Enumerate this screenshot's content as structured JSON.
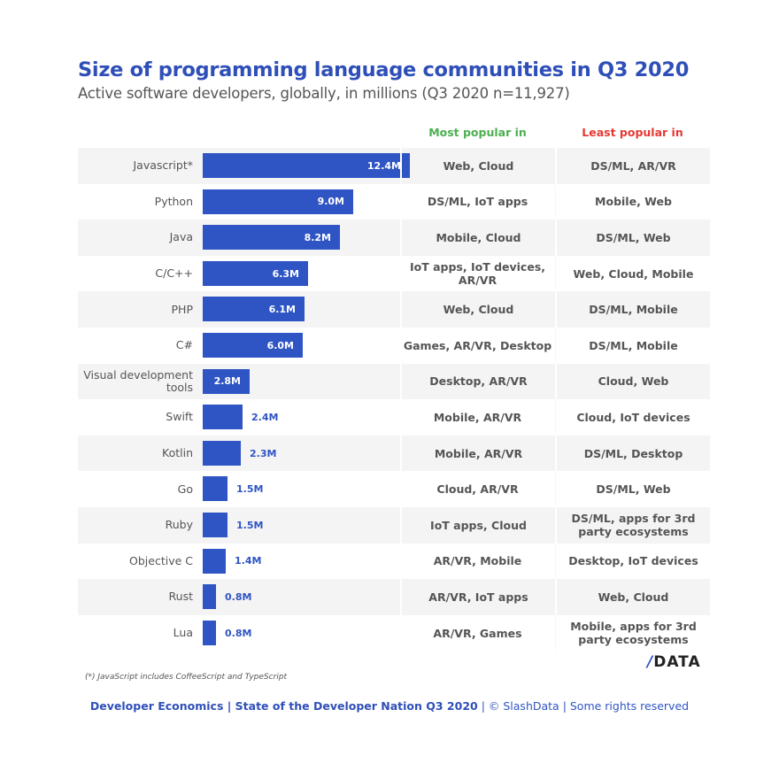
{
  "header": {
    "title": "Size of programming language communities in Q3 2020",
    "subtitle": "Active software developers, globally, in millions (Q3 2020 n=11,927)"
  },
  "columns": {
    "most_popular": "Most popular in",
    "least_popular": "Least popular in"
  },
  "colors": {
    "bar": "#2f55c4",
    "title": "#2f4fb8",
    "most_popular": "#4caf50",
    "least_popular": "#e53935"
  },
  "chart_data": {
    "type": "bar",
    "orientation": "horizontal",
    "title": "Size of programming language communities in Q3 2020",
    "subtitle": "Active software developers, globally, in millions (Q3 2020 n=11,927)",
    "xlabel": "",
    "ylabel": "",
    "unit": "M",
    "xlim": [
      0,
      12.4
    ],
    "grid": false,
    "legend": "none",
    "categories": [
      "Javascript*",
      "Python",
      "Java",
      "C/C++",
      "PHP",
      "C#",
      "Visual development tools",
      "Swift",
      "Kotlin",
      "Go",
      "Ruby",
      "Objective C",
      "Rust",
      "Lua"
    ],
    "values": [
      12.4,
      9.0,
      8.2,
      6.3,
      6.1,
      6.0,
      2.8,
      2.4,
      2.3,
      1.5,
      1.5,
      1.4,
      0.8,
      0.8
    ],
    "value_labels": [
      "12.4M",
      "9.0M",
      "8.2M",
      "6.3M",
      "6.1M",
      "6.0M",
      "2.8M",
      "2.4M",
      "2.3M",
      "1.5M",
      "1.5M",
      "1.4M",
      "0.8M",
      "0.8M"
    ],
    "most_popular_in": [
      "Web, Cloud",
      "DS/ML, IoT apps",
      "Mobile, Cloud",
      "IoT apps, IoT devices, AR/VR",
      "Web, Cloud",
      "Games, AR/VR, Desktop",
      "Desktop, AR/VR",
      "Mobile, AR/VR",
      "Mobile, AR/VR",
      "Cloud, AR/VR",
      "IoT apps, Cloud",
      "AR/VR, Mobile",
      "AR/VR, IoT apps",
      "AR/VR, Games"
    ],
    "least_popular_in": [
      "DS/ML, AR/VR",
      "Mobile, Web",
      "DS/ML, Web",
      "Web, Cloud, Mobile",
      "DS/ML, Mobile",
      "DS/ML, Mobile",
      "Cloud, Web",
      "Cloud, IoT devices",
      "DS/ML, Desktop",
      "DS/ML, Web",
      "DS/ML, apps for 3rd party ecosystems",
      "Desktop, IoT devices",
      "Web, Cloud",
      "Mobile, apps for 3rd party ecosystems"
    ]
  },
  "rows": [
    {
      "language": "Javascript*",
      "value": 12.4,
      "label": "12.4M",
      "most": "Web, Cloud",
      "least": "DS/ML, AR/VR"
    },
    {
      "language": "Python",
      "value": 9.0,
      "label": "9.0M",
      "most": "DS/ML, IoT apps",
      "least": "Mobile, Web"
    },
    {
      "language": "Java",
      "value": 8.2,
      "label": "8.2M",
      "most": "Mobile, Cloud",
      "least": "DS/ML, Web"
    },
    {
      "language": "C/C++",
      "value": 6.3,
      "label": "6.3M",
      "most": "IoT apps, IoT devices, AR/VR",
      "least": "Web, Cloud, Mobile"
    },
    {
      "language": "PHP",
      "value": 6.1,
      "label": "6.1M",
      "most": "Web, Cloud",
      "least": "DS/ML, Mobile"
    },
    {
      "language": "C#",
      "value": 6.0,
      "label": "6.0M",
      "most": "Games, AR/VR, Desktop",
      "least": "DS/ML, Mobile"
    },
    {
      "language": "Visual development tools",
      "value": 2.8,
      "label": "2.8M",
      "most": "Desktop, AR/VR",
      "least": "Cloud, Web"
    },
    {
      "language": "Swift",
      "value": 2.4,
      "label": "2.4M",
      "most": "Mobile, AR/VR",
      "least": "Cloud, IoT devices"
    },
    {
      "language": "Kotlin",
      "value": 2.3,
      "label": "2.3M",
      "most": "Mobile, AR/VR",
      "least": "DS/ML, Desktop"
    },
    {
      "language": "Go",
      "value": 1.5,
      "label": "1.5M",
      "most": "Cloud, AR/VR",
      "least": "DS/ML, Web"
    },
    {
      "language": "Ruby",
      "value": 1.5,
      "label": "1.5M",
      "most": "IoT apps, Cloud",
      "least": "DS/ML, apps for 3rd party ecosystems"
    },
    {
      "language": "Objective C",
      "value": 1.4,
      "label": "1.4M",
      "most": "AR/VR, Mobile",
      "least": "Desktop, IoT devices"
    },
    {
      "language": "Rust",
      "value": 0.8,
      "label": "0.8M",
      "most": "AR/VR, IoT apps",
      "least": "Web, Cloud"
    },
    {
      "language": "Lua",
      "value": 0.8,
      "label": "0.8M",
      "most": "AR/VR, Games",
      "least": "Mobile, apps for 3rd party ecosystems"
    }
  ],
  "logo": {
    "slash": "/",
    "text": "DATA"
  },
  "footnote": "(*) JavaScript includes CoffeeScript and TypeScript",
  "footer": {
    "strong": "Developer Economics | State of the Developer Nation Q3 2020",
    "light": " | © SlashData | Some rights reserved"
  }
}
